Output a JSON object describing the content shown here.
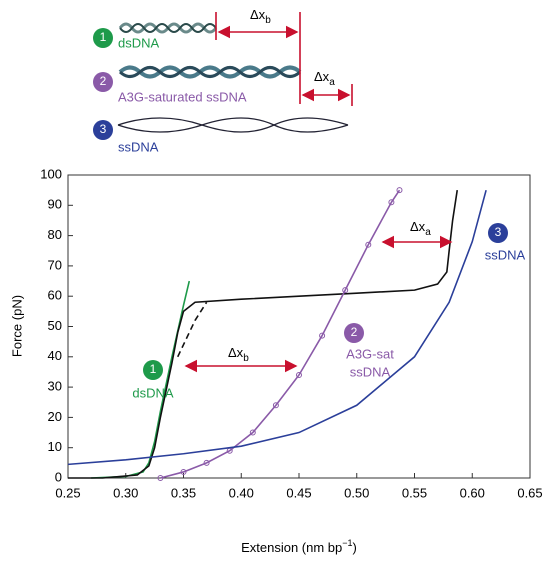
{
  "schematic": {
    "items": [
      {
        "number": "1",
        "label": "dsDNA"
      },
      {
        "number": "2",
        "label": "A3G-saturated ssDNA"
      },
      {
        "number": "3",
        "label": "ssDNA"
      }
    ],
    "delta_b": {
      "symbol": "Δx",
      "sub": "b"
    },
    "delta_a": {
      "symbol": "Δx",
      "sub": "a"
    }
  },
  "chart_data": {
    "type": "line",
    "xlabel": {
      "text": "Extension (nm bp",
      "sup": "−1",
      "end": ")"
    },
    "ylabel": "Force (pN)",
    "xlim": [
      0.25,
      0.65
    ],
    "xticks": [
      0.25,
      {
        "value": 0.3,
        "label": "0.30"
      },
      0.35,
      {
        "value": 0.4,
        "label": "0.40"
      },
      0.45,
      {
        "value": 0.5,
        "label": "0.50"
      },
      0.55,
      {
        "value": 0.6,
        "label": "0.60"
      },
      0.65
    ],
    "ylim": [
      0,
      100
    ],
    "yticks": [
      0,
      10,
      20,
      30,
      40,
      50,
      60,
      70,
      80,
      90,
      100
    ],
    "series": [
      {
        "color": "#1e9a4a",
        "x": [
          0.27,
          0.3,
          0.315,
          0.32,
          0.325,
          0.33,
          0.34,
          0.35,
          0.355
        ],
        "values": [
          0,
          0.5,
          2,
          5,
          12,
          22,
          40,
          57,
          65
        ]
      },
      {
        "color": "#111111",
        "x": [
          0.25,
          0.28,
          0.31,
          0.32,
          0.325,
          0.33,
          0.34,
          0.345,
          0.35,
          0.36,
          0.4,
          0.45,
          0.5,
          0.55,
          0.57,
          0.578,
          0.58,
          0.583,
          0.587
        ],
        "values": [
          0,
          0,
          1,
          4,
          10,
          20,
          38,
          48,
          55,
          58,
          59,
          60,
          61,
          62,
          64,
          68,
          75,
          85,
          95
        ]
      },
      {
        "color": "#111111",
        "linestyle": "dashed",
        "x": [
          0.345,
          0.35,
          0.355,
          0.36,
          0.37
        ],
        "values": [
          40,
          44,
          48,
          52,
          58
        ]
      },
      {
        "color": "#8a5aa8",
        "markers": "circle",
        "x": [
          0.33,
          0.35,
          0.37,
          0.39,
          0.41,
          0.43,
          0.45,
          0.47,
          0.49,
          0.51,
          0.53,
          0.537
        ],
        "values": [
          0,
          2,
          5,
          9,
          15,
          24,
          34,
          47,
          62,
          77,
          91,
          95
        ]
      },
      {
        "color": "#2b3f9a",
        "x": [
          0.25,
          0.3,
          0.35,
          0.4,
          0.45,
          0.5,
          0.55,
          0.58,
          0.6,
          0.612
        ],
        "values": [
          4.5,
          6,
          8,
          10.5,
          15,
          24,
          40,
          58,
          78,
          95
        ]
      }
    ],
    "annotations": {
      "curve_1": {
        "number": "1",
        "lines": [
          "dsDNA"
        ]
      },
      "curve_2": {
        "number": "2",
        "lines": [
          "A3G-sat",
          "ssDNA"
        ]
      },
      "curve_3": {
        "number": "3",
        "lines": [
          "ssDNA"
        ]
      },
      "delta_b": {
        "symbol": "Δx",
        "sub": "b"
      },
      "delta_a": {
        "symbol": "Δx",
        "sub": "a"
      }
    }
  }
}
